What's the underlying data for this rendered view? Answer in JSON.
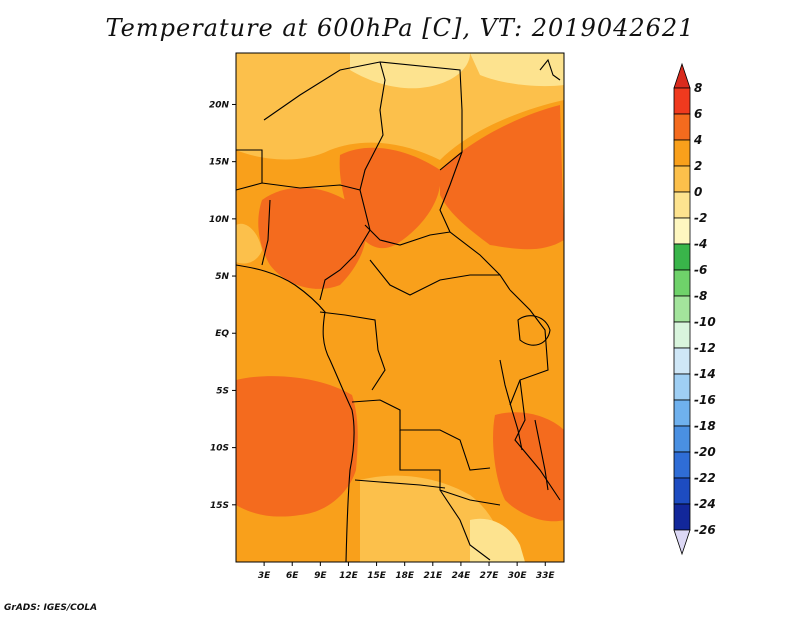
{
  "title": "Temperature at 600hPa [C], VT: 2019042621",
  "credit": "GrADS: IGES/COLA",
  "map": {
    "lon_range": [
      0,
      35
    ],
    "lat_range": [
      -20,
      24.5
    ],
    "x_ticks": [
      {
        "value": 3,
        "label": "3E"
      },
      {
        "value": 6,
        "label": "6E"
      },
      {
        "value": 9,
        "label": "9E"
      },
      {
        "value": 12,
        "label": "12E"
      },
      {
        "value": 15,
        "label": "15E"
      },
      {
        "value": 18,
        "label": "18E"
      },
      {
        "value": 21,
        "label": "21E"
      },
      {
        "value": 24,
        "label": "24E"
      },
      {
        "value": 27,
        "label": "27E"
      },
      {
        "value": 30,
        "label": "30E"
      },
      {
        "value": 33,
        "label": "33E"
      }
    ],
    "y_ticks": [
      {
        "value": 20,
        "label": "20N"
      },
      {
        "value": 15,
        "label": "15N"
      },
      {
        "value": 10,
        "label": "10N"
      },
      {
        "value": 5,
        "label": "5N"
      },
      {
        "value": 0,
        "label": "EQ"
      },
      {
        "value": -5,
        "label": "5S"
      },
      {
        "value": -10,
        "label": "10S"
      },
      {
        "value": -15,
        "label": "15S"
      }
    ],
    "colors": {
      "level_0_2": "#fcc04b",
      "level_2_4": "#f9a01b",
      "level_4_6": "#f46b1e",
      "level_m2_0": "#fde38f",
      "border": "#000000"
    }
  },
  "colorbar": {
    "levels": [
      "8",
      "6",
      "4",
      "2",
      "0",
      "-2",
      "-4",
      "-6",
      "-8",
      "-10",
      "-12",
      "-14",
      "-16",
      "-18",
      "-20",
      "-22",
      "-24",
      "-26"
    ],
    "colors": [
      "#f03a1e",
      "#f46b1e",
      "#f9a01b",
      "#fcc04b",
      "#fde38f",
      "#fef7c0",
      "#39b54a",
      "#6fd26a",
      "#a3e49c",
      "#d9f5dd",
      "#cfe7f7",
      "#9fcff4",
      "#6fb1ee",
      "#4a90e2",
      "#2f6dd6",
      "#1d4cc1",
      "#12279a",
      "#0a0f6e"
    ],
    "top_arrow_color": "#d92b1d",
    "bottom_arrow_color": "#dcd8f5"
  }
}
